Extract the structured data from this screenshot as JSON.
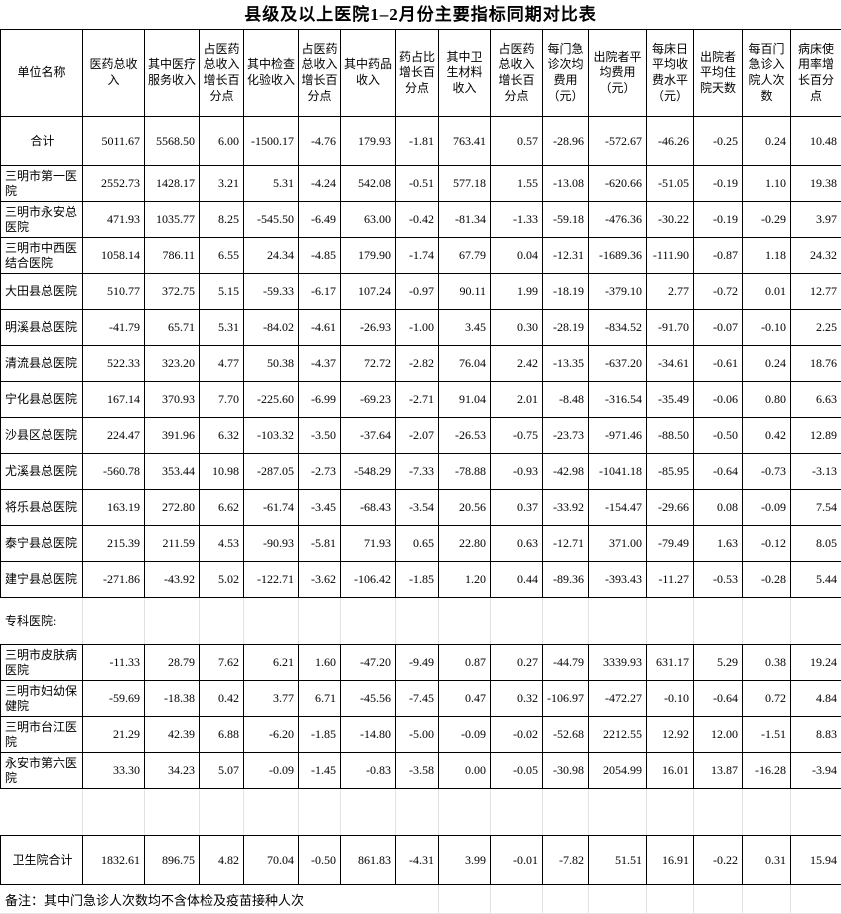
{
  "title": "县级及以上医院1–2月份主要指标同期对比表",
  "headers": [
    "单位名称",
    "医药总收入",
    "其中医疗服务收入",
    "占医药总收入增长百分点",
    "其中检查化验收入",
    "占医药总收入增长百分点",
    "其中药品收入",
    "药占比增长百分点",
    "其中卫生材料收入",
    "占医药总收入增长百分点",
    "每门急诊次均费用（元）",
    "出院者平均费用（元）",
    "每床日平均收费水平（元）",
    "出院者平均住院天数",
    "每百门急诊入院人次数",
    "病床使用率增长百分点"
  ],
  "rows": [
    {
      "type": "total",
      "name": "合计",
      "values": [
        "5011.67",
        "5568.50",
        "6.00",
        "-1500.17",
        "-4.76",
        "179.93",
        "-1.81",
        "763.41",
        "0.57",
        "-28.96",
        "-572.67",
        "-46.26",
        "-0.25",
        "0.24",
        "10.48"
      ]
    },
    {
      "type": "normal",
      "name": "三明市第一医院",
      "values": [
        "2552.73",
        "1428.17",
        "3.21",
        "5.31",
        "-4.24",
        "542.08",
        "-0.51",
        "577.18",
        "1.55",
        "-13.08",
        "-620.66",
        "-51.05",
        "-0.19",
        "1.10",
        "19.38"
      ]
    },
    {
      "type": "normal",
      "name": "三明市永安总医院",
      "values": [
        "471.93",
        "1035.77",
        "8.25",
        "-545.50",
        "-6.49",
        "63.00",
        "-0.42",
        "-81.34",
        "-1.33",
        "-59.18",
        "-476.36",
        "-30.22",
        "-0.19",
        "-0.29",
        "3.97"
      ]
    },
    {
      "type": "normal",
      "name": "三明市中西医结合医院",
      "values": [
        "1058.14",
        "786.11",
        "6.55",
        "24.34",
        "-4.85",
        "179.90",
        "-1.74",
        "67.79",
        "0.04",
        "-12.31",
        "-1689.36",
        "-111.90",
        "-0.87",
        "1.18",
        "24.32"
      ]
    },
    {
      "type": "normal",
      "name": "大田县总医院",
      "values": [
        "510.77",
        "372.75",
        "5.15",
        "-59.33",
        "-6.17",
        "107.24",
        "-0.97",
        "90.11",
        "1.99",
        "-18.19",
        "-379.10",
        "2.77",
        "-0.72",
        "0.01",
        "12.77"
      ]
    },
    {
      "type": "normal",
      "name": "明溪县总医院",
      "values": [
        "-41.79",
        "65.71",
        "5.31",
        "-84.02",
        "-4.61",
        "-26.93",
        "-1.00",
        "3.45",
        "0.30",
        "-28.19",
        "-834.52",
        "-91.70",
        "-0.07",
        "-0.10",
        "2.25"
      ]
    },
    {
      "type": "normal",
      "name": "清流县总医院",
      "values": [
        "522.33",
        "323.20",
        "4.77",
        "50.38",
        "-4.37",
        "72.72",
        "-2.82",
        "76.04",
        "2.42",
        "-13.35",
        "-637.20",
        "-34.61",
        "-0.61",
        "0.24",
        "18.76"
      ]
    },
    {
      "type": "normal",
      "name": "宁化县总医院",
      "values": [
        "167.14",
        "370.93",
        "7.70",
        "-225.60",
        "-6.99",
        "-69.23",
        "-2.71",
        "91.04",
        "2.01",
        "-8.48",
        "-316.54",
        "-35.49",
        "-0.06",
        "0.80",
        "6.63"
      ]
    },
    {
      "type": "normal",
      "name": "沙县区总医院",
      "values": [
        "224.47",
        "391.96",
        "6.32",
        "-103.32",
        "-3.50",
        "-37.64",
        "-2.07",
        "-26.53",
        "-0.75",
        "-23.73",
        "-971.46",
        "-88.50",
        "-0.50",
        "0.42",
        "12.89"
      ]
    },
    {
      "type": "normal",
      "name": "尤溪县总医院",
      "values": [
        "-560.78",
        "353.44",
        "10.98",
        "-287.05",
        "-2.73",
        "-548.29",
        "-7.33",
        "-78.88",
        "-0.93",
        "-42.98",
        "-1041.18",
        "-85.95",
        "-0.64",
        "-0.73",
        "-3.13"
      ]
    },
    {
      "type": "normal",
      "name": "将乐县总医院",
      "values": [
        "163.19",
        "272.80",
        "6.62",
        "-61.74",
        "-3.45",
        "-68.43",
        "-3.54",
        "20.56",
        "0.37",
        "-33.92",
        "-154.47",
        "-29.66",
        "0.08",
        "-0.09",
        "7.54"
      ]
    },
    {
      "type": "normal",
      "name": "泰宁县总医院",
      "values": [
        "215.39",
        "211.59",
        "4.53",
        "-90.93",
        "-5.81",
        "71.93",
        "0.65",
        "22.80",
        "0.63",
        "-12.71",
        "371.00",
        "-79.49",
        "1.63",
        "-0.12",
        "8.05"
      ]
    },
    {
      "type": "normal",
      "name": "建宁县总医院",
      "values": [
        "-271.86",
        "-43.92",
        "5.02",
        "-122.71",
        "-3.62",
        "-106.42",
        "-1.85",
        "1.20",
        "0.44",
        "-89.36",
        "-393.43",
        "-11.27",
        "-0.53",
        "-0.28",
        "5.44"
      ]
    },
    {
      "type": "section",
      "name": "专科医院:",
      "values": [
        "",
        "",
        "",
        "",
        "",
        "",
        "",
        "",
        "",
        "",
        "",
        "",
        "",
        "",
        ""
      ]
    },
    {
      "type": "normal",
      "name": "三明市皮肤病医院",
      "values": [
        "-11.33",
        "28.79",
        "7.62",
        "6.21",
        "1.60",
        "-47.20",
        "-9.49",
        "0.87",
        "0.27",
        "-44.79",
        "3339.93",
        "631.17",
        "5.29",
        "0.38",
        "19.24"
      ]
    },
    {
      "type": "normal",
      "name": "三明市妇幼保健院",
      "values": [
        "-59.69",
        "-18.38",
        "0.42",
        "3.77",
        "6.71",
        "-45.56",
        "-7.45",
        "0.47",
        "0.32",
        "-106.97",
        "-472.27",
        "-0.10",
        "-0.64",
        "0.72",
        "4.84"
      ]
    },
    {
      "type": "normal",
      "name": "三明市台江医院",
      "values": [
        "21.29",
        "42.39",
        "6.88",
        "-6.20",
        "-1.85",
        "-14.80",
        "-5.00",
        "-0.09",
        "-0.02",
        "-52.68",
        "2212.55",
        "12.92",
        "12.00",
        "-1.51",
        "8.83"
      ]
    },
    {
      "type": "normal",
      "name": "永安市第六医院",
      "values": [
        "33.30",
        "34.23",
        "5.07",
        "-0.09",
        "-1.45",
        "-0.83",
        "-3.58",
        "0.00",
        "-0.05",
        "-30.98",
        "2054.99",
        "16.01",
        "13.87",
        "-16.28",
        "-3.94"
      ]
    },
    {
      "type": "blank",
      "name": "",
      "values": [
        "",
        "",
        "",
        "",
        "",
        "",
        "",
        "",
        "",
        "",
        "",
        "",
        "",
        "",
        ""
      ]
    },
    {
      "type": "total",
      "name": "卫生院合计",
      "values": [
        "1832.61",
        "896.75",
        "4.82",
        "70.04",
        "-0.50",
        "861.83",
        "-4.31",
        "3.99",
        "-0.01",
        "-7.82",
        "51.51",
        "16.91",
        "-0.22",
        "0.31",
        "15.94"
      ]
    }
  ],
  "note": "备注：其中门急诊人次数均不含体检及疫苗接种人次"
}
